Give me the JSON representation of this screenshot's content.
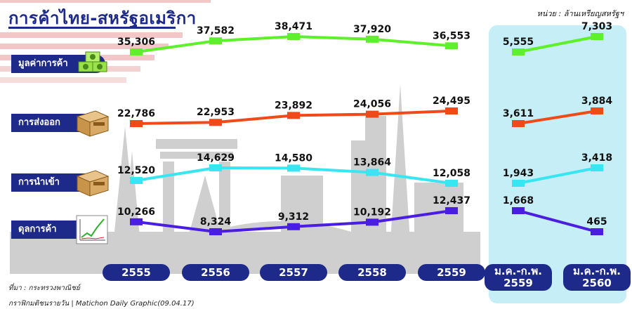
{
  "header": {
    "title": "การค้าไทย-สหรัฐอเมริกา",
    "unit": "หน่วย : ล้านเหรียญสหรัฐฯ"
  },
  "footer": {
    "source": "ที่มา : กระทรวงพาณิชย์",
    "credit": "กราฟิกมติชนรายวัน | Matichon  Daily  Graphic(09.04.17)"
  },
  "colors": {
    "navy": "#1e2a8a",
    "highlight": "#c6eef6",
    "trade": "#5ef02a",
    "exports": "#f04a1a",
    "imports": "#38e6f2",
    "balance": "#4a1ee0"
  },
  "icons": [
    "money-stack-icon",
    "export-box-icon",
    "import-box-icon",
    "chart-icon"
  ],
  "chart_data": {
    "type": "line",
    "categories": [
      "2555",
      "2556",
      "2557",
      "2558",
      "2559",
      "ม.ค.-ก.พ. 2559",
      "ม.ค.-ก.พ. 2560"
    ],
    "category_display": [
      [
        "2555"
      ],
      [
        "2556"
      ],
      [
        "2557"
      ],
      [
        "2558"
      ],
      [
        "2559"
      ],
      [
        "ม.ค.-ก.พ.",
        "2559"
      ],
      [
        "ม.ค.-ก.พ.",
        "2560"
      ]
    ],
    "segments": [
      [
        0,
        4
      ],
      [
        5,
        6
      ]
    ],
    "series": [
      {
        "name": "มูลค่าการค้า",
        "values": [
          35306,
          37582,
          38471,
          37920,
          36553,
          5555,
          7303
        ],
        "labels": [
          "35,306",
          "37,582",
          "38,471",
          "37,920",
          "36,553",
          "5,555",
          "7,303"
        ]
      },
      {
        "name": "การส่งออก",
        "values": [
          22786,
          22953,
          23892,
          24056,
          24495,
          3611,
          3884
        ],
        "labels": [
          "22,786",
          "22,953",
          "23,892",
          "24,056",
          "24,495",
          "3,611",
          "3,884"
        ]
      },
      {
        "name": "การนำเข้า",
        "values": [
          12520,
          14629,
          14580,
          13864,
          12058,
          1943,
          3418
        ],
        "labels": [
          "12,520",
          "14,629",
          "14,580",
          "13,864",
          "12,058",
          "1,943",
          "3,418"
        ]
      },
      {
        "name": "ดุลการค้า",
        "values": [
          10266,
          8324,
          9312,
          10192,
          12437,
          1668,
          465
        ],
        "labels": [
          "10,266",
          "8,324",
          "9,312",
          "10,192",
          "12,437",
          "1,668",
          "465"
        ]
      }
    ]
  }
}
